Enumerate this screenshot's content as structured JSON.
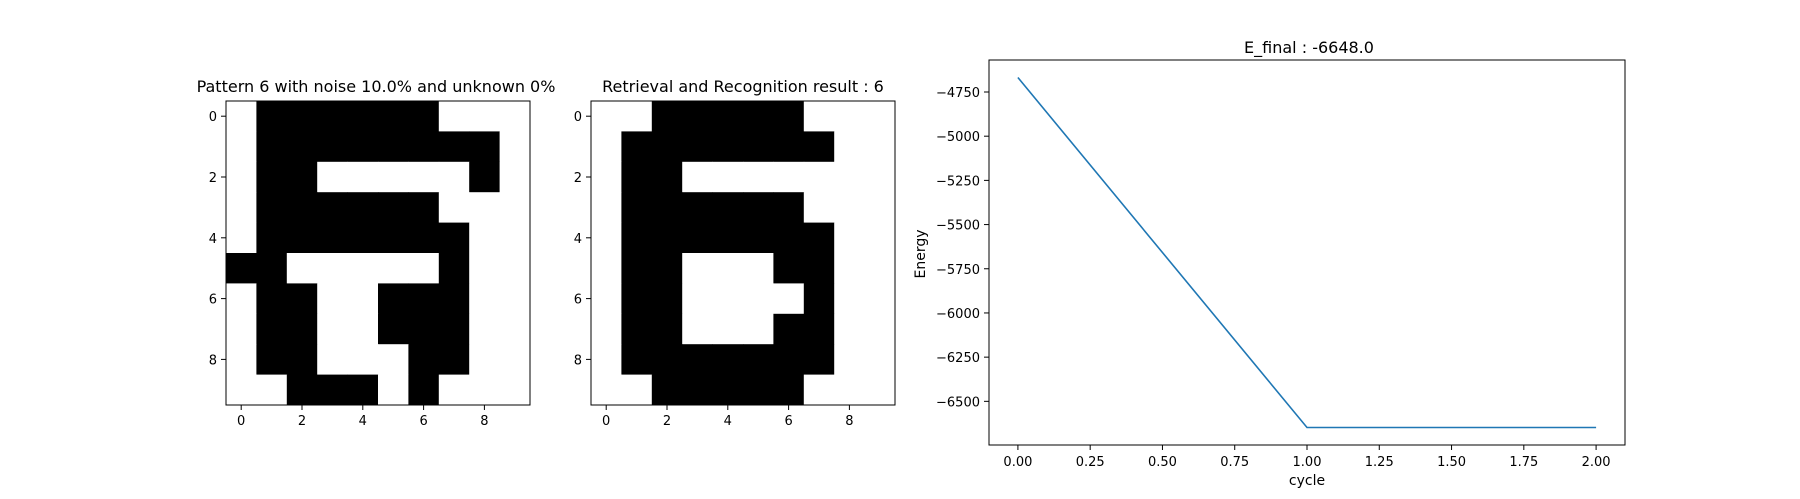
{
  "chart_data": [
    {
      "type": "heatmap",
      "title": "Pattern 6 with noise 10.0% and unknown 0%",
      "xticks": [
        0,
        2,
        4,
        6,
        8
      ],
      "yticks": [
        0,
        2,
        4,
        6,
        8
      ],
      "colors": {
        "0": "#ffffff",
        "1": "#000000"
      },
      "grid": [
        [
          0,
          1,
          1,
          1,
          1,
          1,
          1,
          0,
          0,
          0
        ],
        [
          0,
          1,
          1,
          1,
          1,
          1,
          1,
          1,
          1,
          0
        ],
        [
          0,
          1,
          1,
          0,
          0,
          0,
          0,
          0,
          1,
          0
        ],
        [
          0,
          1,
          1,
          1,
          1,
          1,
          1,
          0,
          0,
          0
        ],
        [
          0,
          1,
          1,
          1,
          1,
          1,
          1,
          1,
          0,
          0
        ],
        [
          1,
          1,
          0,
          0,
          0,
          0,
          0,
          1,
          0,
          0
        ],
        [
          0,
          1,
          1,
          0,
          0,
          1,
          1,
          1,
          0,
          0
        ],
        [
          0,
          1,
          1,
          0,
          0,
          1,
          1,
          1,
          0,
          0
        ],
        [
          0,
          1,
          1,
          0,
          0,
          0,
          1,
          1,
          0,
          0
        ],
        [
          0,
          0,
          1,
          1,
          1,
          0,
          1,
          0,
          0,
          0
        ]
      ]
    },
    {
      "type": "heatmap",
      "title": "Retrieval and Recognition result : 6",
      "xticks": [
        0,
        2,
        4,
        6,
        8
      ],
      "yticks": [
        0,
        2,
        4,
        6,
        8
      ],
      "colors": {
        "0": "#ffffff",
        "1": "#000000"
      },
      "grid": [
        [
          0,
          0,
          1,
          1,
          1,
          1,
          1,
          0,
          0,
          0
        ],
        [
          0,
          1,
          1,
          1,
          1,
          1,
          1,
          1,
          0,
          0
        ],
        [
          0,
          1,
          1,
          0,
          0,
          0,
          0,
          0,
          0,
          0
        ],
        [
          0,
          1,
          1,
          1,
          1,
          1,
          1,
          0,
          0,
          0
        ],
        [
          0,
          1,
          1,
          1,
          1,
          1,
          1,
          1,
          0,
          0
        ],
        [
          0,
          1,
          1,
          0,
          0,
          0,
          1,
          1,
          0,
          0
        ],
        [
          0,
          1,
          1,
          0,
          0,
          0,
          0,
          1,
          0,
          0
        ],
        [
          0,
          1,
          1,
          0,
          0,
          0,
          1,
          1,
          0,
          0
        ],
        [
          0,
          1,
          1,
          1,
          1,
          1,
          1,
          1,
          0,
          0
        ],
        [
          0,
          0,
          1,
          1,
          1,
          1,
          1,
          0,
          0,
          0
        ]
      ]
    },
    {
      "type": "line",
      "title": "E_final : -6648.0",
      "xlabel": "cycle",
      "ylabel": "Energy",
      "x": [
        0,
        1,
        2
      ],
      "series": [
        {
          "values": [
            -4668,
            -6648,
            -6648
          ],
          "color": "#1f77b4"
        }
      ],
      "xlim": [
        -0.1,
        2.1
      ],
      "ylim": [
        -6747,
        -4569
      ],
      "xticks": [
        "0.00",
        "0.25",
        "0.50",
        "0.75",
        "1.00",
        "1.25",
        "1.50",
        "1.75",
        "2.00"
      ],
      "yticks": [
        "−6500",
        "−6250",
        "−6000",
        "−5750",
        "−5500",
        "−5250",
        "−5000",
        "−4750"
      ],
      "grid": false
    }
  ]
}
